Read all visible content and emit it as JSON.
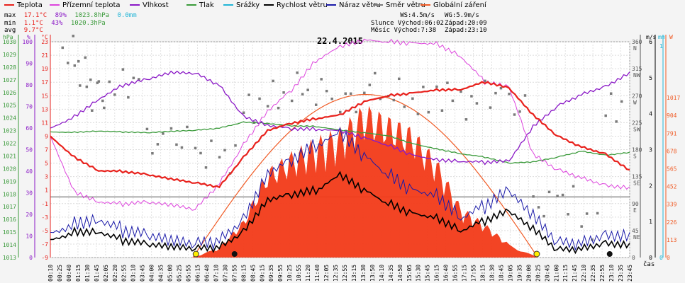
{
  "legend": [
    {
      "label": "Teplota",
      "color": "#e8211c"
    },
    {
      "label": "Přízemní teplota",
      "color": "#dd44dd"
    },
    {
      "label": "Vlhkost",
      "color": "#8a18c6"
    },
    {
      "label": "Tlak",
      "color": "#3a9a3a"
    },
    {
      "label": "Srážky",
      "color": "#22b5d6"
    },
    {
      "label": "Rychlost větru",
      "color": "#000000"
    },
    {
      "label": "Náraz větru",
      "color": "#1a1aa8"
    },
    {
      "label": "Směr větru",
      "color": "#7a7a7a"
    },
    {
      "label": "Globální záření",
      "color": "#f05a24"
    }
  ],
  "stats": {
    "max": {
      "label": "max",
      "temp": "17.1°C",
      "hum": "89%",
      "press": "1023.8hPa",
      "rain": "0.0mm"
    },
    "min": {
      "label": "min",
      "temp": "1.1°C",
      "hum": "43%",
      "press": "1020.3hPa"
    },
    "avg": {
      "label": "avg",
      "temp": "9.7°C"
    }
  },
  "astro": {
    "ws": "WS:4.5m/s",
    "wg": "WG:5.9m/s",
    "sun_rise": "Slunce Východ:06:02",
    "sun_set": "Západ:20:09",
    "moon_rise": "Měsíc  Východ:7:38",
    "moon_set": "Západ:23:10"
  },
  "chart_data": {
    "type": "line",
    "title": "22.4.2015",
    "xlabel": "čas",
    "x_ticks": [
      "00:10",
      "00:25",
      "00:40",
      "01:15",
      "01:30",
      "01:45",
      "02:05",
      "02:20",
      "02:55",
      "03:10",
      "03:45",
      "04:00",
      "04:35",
      "05:00",
      "05:25",
      "05:55",
      "06:15",
      "06:40",
      "07:10",
      "07:30",
      "07:55",
      "08:15",
      "08:45",
      "09:15",
      "09:35",
      "09:55",
      "10:25",
      "10:55",
      "11:20",
      "11:40",
      "12:05",
      "12:35",
      "12:55",
      "13:15",
      "13:30",
      "13:50",
      "14:10",
      "14:35",
      "14:50",
      "15:05",
      "15:30",
      "15:45",
      "16:15",
      "16:40",
      "16:55",
      "17:15",
      "17:55",
      "18:15",
      "18:30",
      "18:45",
      "19:05",
      "19:35",
      "20:00",
      "20:25",
      "20:45",
      "21:00",
      "21:15",
      "21:45",
      "22:10",
      "22:35",
      "22:55",
      "23:10",
      "23:35",
      "23:45"
    ],
    "axes": {
      "pressure": {
        "unit": "hPa",
        "ticks": [
          "1030",
          "1029",
          "1028",
          "1027",
          "1026",
          "1025",
          "1024",
          "1023",
          "1022",
          "1021",
          "1020",
          "1019",
          "1018",
          "1017",
          "1016",
          "1015",
          "1014",
          "1013"
        ],
        "range": [
          1013,
          1030
        ]
      },
      "humidity": {
        "unit": "%",
        "ticks": [
          "100",
          "90",
          "80",
          "70",
          "60",
          "50",
          "40",
          "30",
          "20",
          "10",
          "0"
        ],
        "range": [
          0,
          100
        ]
      },
      "temperature": {
        "unit": "°C",
        "ticks": [
          "23",
          "21",
          "19",
          "17",
          "15",
          "13",
          "11",
          "9",
          "7",
          "5",
          "3",
          "1",
          "-1",
          "-3",
          "-5",
          "-7",
          "-9"
        ],
        "range": [
          -9,
          23
        ]
      },
      "wind_dir": {
        "ticks": [
          "360 N",
          "315 NW",
          "270 W",
          "225 SW",
          "180 S",
          "135 SE",
          "90 E",
          "45 NE",
          "0"
        ],
        "range": [
          0,
          360
        ]
      },
      "wind_speed": {
        "unit": "m/s",
        "ticks": [
          "6",
          "5",
          "4",
          "3",
          "2",
          "1",
          "0"
        ],
        "range": [
          0,
          6
        ]
      },
      "rain": {
        "unit": "mm",
        "ticks": [
          "1",
          "0"
        ],
        "range": [
          0,
          1
        ]
      },
      "radiation": {
        "unit": "W",
        "ticks": [
          "1017",
          "904",
          "791",
          "678",
          "565",
          "452",
          "339",
          "226",
          "113",
          "0"
        ],
        "range": [
          0,
          1017
        ]
      }
    },
    "series": [
      {
        "name": "Teplota",
        "unit": "°C",
        "color": "#e8211c",
        "x": [
          0,
          1,
          2,
          3,
          4,
          5,
          6,
          7,
          8,
          9,
          10,
          11,
          12,
          13,
          14,
          15,
          16,
          17,
          18,
          19,
          20,
          21,
          22,
          23,
          24
        ],
        "y": [
          9,
          6,
          4,
          3.8,
          3.2,
          2.5,
          2.0,
          1.5,
          6,
          10,
          11,
          11.5,
          12,
          14,
          15,
          15.5,
          16,
          16,
          17,
          16,
          12,
          9,
          7.5,
          6.5,
          4
        ]
      },
      {
        "name": "Přízemní teplota",
        "unit": "°C",
        "color": "#dd44dd",
        "x": [
          0,
          1,
          2,
          3,
          4,
          5,
          6,
          7,
          8,
          9,
          10,
          11,
          12,
          13,
          14,
          15,
          16,
          17,
          18,
          19,
          20,
          21,
          22,
          23,
          24
        ],
        "y": [
          9,
          1,
          -0.5,
          -1,
          -1,
          -1.5,
          -2,
          2,
          8,
          13,
          16,
          20,
          22,
          23,
          23,
          23,
          23,
          21,
          17,
          16,
          6,
          4,
          3,
          2,
          1.5
        ]
      },
      {
        "name": "Vlhkost",
        "unit": "%",
        "color": "#8a18c6",
        "x": [
          0,
          1,
          2,
          3,
          4,
          5,
          6,
          7,
          8,
          9,
          10,
          11,
          12,
          13,
          14,
          15,
          16,
          17,
          18,
          19,
          20,
          21,
          22,
          23,
          24
        ],
        "y": [
          60,
          66,
          74,
          80,
          82,
          85,
          85,
          80,
          66,
          62,
          60,
          59,
          58,
          55,
          52,
          48,
          46,
          45,
          44,
          44,
          60,
          70,
          76,
          80,
          86
        ]
      },
      {
        "name": "Tlak",
        "unit": "hPa",
        "color": "#3a9a3a",
        "x": [
          0,
          1,
          2,
          3,
          4,
          5,
          6,
          7,
          8,
          9,
          10,
          11,
          12,
          13,
          14,
          15,
          16,
          17,
          18,
          19,
          20,
          21,
          22,
          23,
          24
        ],
        "y": [
          1022.9,
          1022.9,
          1023.0,
          1022.9,
          1022.8,
          1022.9,
          1023.0,
          1023.2,
          1023.7,
          1023.6,
          1023.4,
          1023.3,
          1023.0,
          1022.8,
          1022.6,
          1022.0,
          1021.6,
          1021.2,
          1020.9,
          1020.4,
          1020.5,
          1020.9,
          1021.4,
          1021.1,
          1021.3
        ]
      },
      {
        "name": "Rychlost větru",
        "unit": "m/s",
        "color": "#000000",
        "x": [
          0,
          1,
          2,
          3,
          4,
          5,
          6,
          7,
          8,
          9,
          10,
          11,
          12,
          13,
          14,
          15,
          16,
          17,
          18,
          19,
          20,
          21,
          22,
          23,
          24
        ],
        "y": [
          0.5,
          0.8,
          0.8,
          0.5,
          0.3,
          0.2,
          0.2,
          0.3,
          0.8,
          1.7,
          1.8,
          1.8,
          2.2,
          1.8,
          1.5,
          1.3,
          1.2,
          0.8,
          1.0,
          1.2,
          0.7,
          0.2,
          0.3,
          0.5,
          0.4
        ]
      },
      {
        "name": "Náraz větru",
        "unit": "m/s",
        "color": "#1a1aa8",
        "x": [
          0,
          1,
          2,
          3,
          4,
          5,
          6,
          7,
          8,
          9,
          10,
          11,
          12,
          13,
          14,
          15,
          16,
          17,
          18,
          19,
          20,
          21,
          22,
          23,
          24
        ],
        "y": [
          0.7,
          1.1,
          1.2,
          0.8,
          0.5,
          0.3,
          0.3,
          0.5,
          1.2,
          2.5,
          2.8,
          3.0,
          3.3,
          2.7,
          2.3,
          2.0,
          1.9,
          1.2,
          1.4,
          1.7,
          1.0,
          0.4,
          0.5,
          0.8,
          0.7
        ]
      },
      {
        "name": "Globální záření",
        "unit": "W",
        "color": "#f05a24",
        "x": [
          5.9,
          7,
          8,
          9,
          10,
          11,
          12,
          13,
          14,
          15,
          16,
          17,
          18,
          19,
          20.2
        ],
        "y": [
          0,
          60,
          220,
          520,
          620,
          700,
          760,
          900,
          830,
          760,
          580,
          300,
          200,
          80,
          0
        ]
      },
      {
        "name": "Směr větru",
        "unit": "°",
        "color": "#7a7a7a",
        "x": [
          0.5,
          1,
          1.5,
          2,
          3,
          4,
          5,
          6,
          7,
          8,
          9,
          10,
          11,
          12,
          13,
          14,
          15,
          16,
          17,
          18,
          19,
          20,
          21,
          22,
          23
        ],
        "y": [
          345,
          310,
          270,
          275,
          290,
          190,
          195,
          170,
          165,
          250,
          270,
          285,
          280,
          265,
          290,
          275,
          260,
          270,
          255,
          270,
          250,
          85,
          95,
          55,
          250
        ]
      }
    ]
  }
}
